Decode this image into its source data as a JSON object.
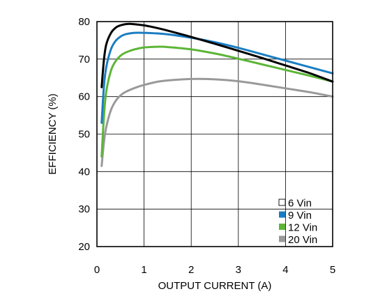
{
  "chart_data": {
    "type": "line",
    "title": "",
    "xlabel": "OUTPUT CURRENT (A)",
    "ylabel": "EFFICIENCY (%)",
    "xlim": [
      0,
      5
    ],
    "ylim": [
      20,
      80
    ],
    "xticks": [
      0,
      1,
      2,
      3,
      4,
      5
    ],
    "yticks": [
      20,
      30,
      40,
      50,
      60,
      70,
      80
    ],
    "grid": true,
    "legend_position": "bottom-right",
    "series": [
      {
        "name": "6 Vin",
        "color": "#000000",
        "legend_swatch_color": "#ffffff",
        "x": [
          0.1,
          0.15,
          0.2,
          0.3,
          0.4,
          0.5,
          0.6,
          0.7,
          0.8,
          1.0,
          1.2,
          1.5,
          2.0,
          2.5,
          3.0,
          3.5,
          4.0,
          4.5,
          5.0
        ],
        "y": [
          62.5,
          70,
          74,
          77,
          78.4,
          79,
          79.3,
          79.4,
          79.3,
          79,
          78.5,
          77.6,
          75.9,
          74.1,
          72.2,
          70.3,
          68.3,
          66.3,
          64
        ]
      },
      {
        "name": "9 Vin",
        "color": "#1a7dc1",
        "legend_swatch_color": "#1a7dc1",
        "x": [
          0.1,
          0.15,
          0.2,
          0.3,
          0.4,
          0.5,
          0.6,
          0.8,
          1.0,
          1.2,
          1.5,
          2.0,
          2.5,
          3.0,
          3.5,
          4.0,
          4.5,
          5.0
        ],
        "y": [
          53,
          63,
          68,
          72.7,
          74.9,
          76,
          76.6,
          77,
          77,
          76.9,
          76.6,
          75.7,
          74.5,
          73,
          71.3,
          69.6,
          67.9,
          66.2
        ]
      },
      {
        "name": "12 Vin",
        "color": "#5cb537",
        "legend_swatch_color": "#5cb537",
        "x": [
          0.1,
          0.15,
          0.2,
          0.3,
          0.4,
          0.5,
          0.6,
          0.8,
          1.0,
          1.3,
          1.5,
          2.0,
          2.5,
          3.0,
          3.5,
          4.0,
          4.5,
          5.0
        ],
        "y": [
          44,
          55,
          61.5,
          67,
          69.5,
          70.9,
          71.7,
          72.6,
          73.1,
          73.3,
          73.2,
          72.6,
          71.5,
          70.1,
          68.6,
          67.1,
          65.6,
          64
        ]
      },
      {
        "name": "20 Vin",
        "color": "#999999",
        "legend_swatch_color": "#999999",
        "x": [
          0.1,
          0.15,
          0.2,
          0.3,
          0.4,
          0.5,
          0.6,
          0.8,
          1.0,
          1.3,
          1.5,
          2.0,
          2.5,
          3.0,
          3.5,
          4.0,
          4.5,
          5.0
        ],
        "y": [
          41.5,
          48,
          52,
          56.5,
          58.9,
          60.3,
          61.2,
          62.3,
          63.1,
          64,
          64.3,
          64.7,
          64.6,
          64.1,
          63.2,
          62.2,
          61.2,
          60
        ]
      }
    ]
  }
}
